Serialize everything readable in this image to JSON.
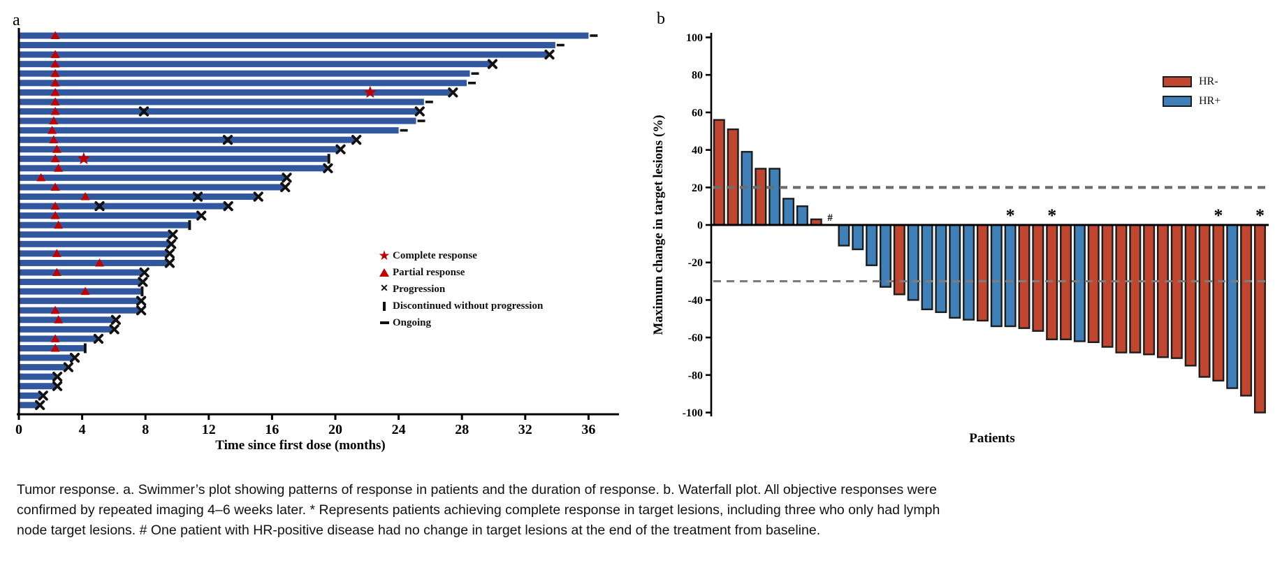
{
  "caption": {
    "lines": [
      "Tumor response. a. Swimmer’s plot showing patterns of response in patients and the duration of response. b. Waterfall plot. All objective responses were",
      "confirmed by repeated imaging 4–6 weeks later. * Represents patients achieving complete response in target lesions, including three who only had lymph",
      "node target lesions. # One patient with HR-positive disease had no change in target lesions at the end of the treatment from baseline."
    ]
  },
  "panel_a": {
    "label": "a",
    "axis_title": "Time since first dose (months)",
    "x_ticks": [
      0,
      4,
      8,
      12,
      16,
      20,
      24,
      28,
      32,
      36
    ],
    "legend": [
      {
        "symbol": "star-icon",
        "label": "Complete response"
      },
      {
        "symbol": "triangle-icon",
        "label": "Partial response"
      },
      {
        "symbol": "x-icon",
        "label": "Progression"
      },
      {
        "symbol": "vbar-icon",
        "label": "Discontinued without progression"
      },
      {
        "symbol": "dash-icon",
        "label": "Ongoing"
      }
    ],
    "colors": {
      "bar": "#31589E",
      "response_marker": "#C00000",
      "event_marker": "#111111"
    }
  },
  "panel_b": {
    "label": "b",
    "y_title": "Maximum change in target lesions (%)",
    "x_title": "Patients",
    "y_ticks": [
      100,
      80,
      60,
      40,
      20,
      0,
      -20,
      -40,
      -60,
      -80,
      -100
    ],
    "reference_lines": [
      20,
      -30
    ],
    "legend": [
      {
        "label": "HR-",
        "color": "#C0462F"
      },
      {
        "label": "HR+",
        "color": "#4080B8"
      }
    ],
    "colors": {
      "hr_neg": "#C0462F",
      "hr_pos": "#4080B8",
      "bar_stroke": "#1d1d1d",
      "dash": "#6e6e6e"
    }
  },
  "chart_data": [
    {
      "type": "bar",
      "subtype": "swimmer",
      "xlabel": "Time since first dose (months)",
      "xlim": [
        0,
        38
      ],
      "x_ticks": [
        0,
        4,
        8,
        12,
        16,
        20,
        24,
        28,
        32,
        36
      ],
      "marker_legend": [
        "Complete response",
        "Partial response",
        "Progression",
        "Discontinued without progression",
        "Ongoing"
      ],
      "patients": [
        {
          "d": 36.0,
          "e": "ongoing",
          "t": [
            2.3
          ],
          "s": [],
          "x": []
        },
        {
          "d": 33.9,
          "e": "ongoing",
          "t": [],
          "s": [],
          "x": []
        },
        {
          "d": 33.4,
          "e": "prog",
          "t": [
            2.3
          ],
          "s": [],
          "x": []
        },
        {
          "d": 29.8,
          "e": "prog",
          "t": [
            2.3
          ],
          "s": [],
          "x": []
        },
        {
          "d": 28.5,
          "e": "ongoing",
          "t": [
            2.3
          ],
          "s": [],
          "x": []
        },
        {
          "d": 28.3,
          "e": "ongoing",
          "t": [
            2.3
          ],
          "s": [],
          "x": []
        },
        {
          "d": 27.3,
          "e": "prog",
          "t": [
            2.3
          ],
          "s": [
            22.2
          ],
          "x": []
        },
        {
          "d": 25.6,
          "e": "ongoing",
          "t": [
            2.3
          ],
          "s": [],
          "x": []
        },
        {
          "d": 25.2,
          "e": "prog",
          "t": [
            2.3
          ],
          "s": [],
          "x": [
            7.9
          ]
        },
        {
          "d": 25.1,
          "e": "ongoing",
          "t": [
            2.2
          ],
          "s": [],
          "x": []
        },
        {
          "d": 24.0,
          "e": "ongoing",
          "t": [
            2.1
          ],
          "s": [],
          "x": []
        },
        {
          "d": 21.2,
          "e": "prog",
          "t": [
            2.2
          ],
          "s": [],
          "x": [
            13.2
          ]
        },
        {
          "d": 20.2,
          "e": "prog",
          "t": [
            2.4
          ],
          "s": [],
          "x": []
        },
        {
          "d": 19.5,
          "e": "disc",
          "t": [
            2.3
          ],
          "s": [
            4.1
          ],
          "x": []
        },
        {
          "d": 19.4,
          "e": "prog",
          "t": [
            2.5
          ],
          "s": [],
          "x": []
        },
        {
          "d": 16.8,
          "e": "prog",
          "t": [
            1.4
          ],
          "s": [],
          "x": []
        },
        {
          "d": 16.7,
          "e": "prog",
          "t": [
            2.3
          ],
          "s": [],
          "x": []
        },
        {
          "d": 15.0,
          "e": "prog",
          "t": [
            4.2
          ],
          "s": [],
          "x": [
            11.3
          ]
        },
        {
          "d": 13.1,
          "e": "prog",
          "t": [
            2.3
          ],
          "s": [],
          "x": [
            5.1
          ]
        },
        {
          "d": 11.4,
          "e": "prog",
          "t": [
            2.3
          ],
          "s": [],
          "x": []
        },
        {
          "d": 10.7,
          "e": "disc",
          "t": [
            2.5
          ],
          "s": [],
          "x": []
        },
        {
          "d": 9.6,
          "e": "prog",
          "t": [],
          "s": [],
          "x": []
        },
        {
          "d": 9.5,
          "e": "prog",
          "t": [],
          "s": [],
          "x": []
        },
        {
          "d": 9.4,
          "e": "prog",
          "t": [
            2.4
          ],
          "s": [],
          "x": []
        },
        {
          "d": 9.4,
          "e": "prog",
          "t": [
            5.1
          ],
          "s": [],
          "x": []
        },
        {
          "d": 7.8,
          "e": "prog",
          "t": [
            2.4
          ],
          "s": [],
          "x": []
        },
        {
          "d": 7.7,
          "e": "prog",
          "t": [],
          "s": [],
          "x": []
        },
        {
          "d": 7.7,
          "e": "disc",
          "t": [
            4.2
          ],
          "s": [],
          "x": []
        },
        {
          "d": 7.6,
          "e": "prog",
          "t": [],
          "s": [],
          "x": []
        },
        {
          "d": 7.6,
          "e": "prog",
          "t": [
            2.3
          ],
          "s": [],
          "x": []
        },
        {
          "d": 6.0,
          "e": "prog",
          "t": [
            2.5
          ],
          "s": [],
          "x": []
        },
        {
          "d": 5.9,
          "e": "prog",
          "t": [],
          "s": [],
          "x": []
        },
        {
          "d": 4.9,
          "e": "prog",
          "t": [
            2.3
          ],
          "s": [],
          "x": []
        },
        {
          "d": 4.1,
          "e": "disc",
          "t": [
            2.3
          ],
          "s": [],
          "x": []
        },
        {
          "d": 3.4,
          "e": "prog",
          "t": [],
          "s": [],
          "x": []
        },
        {
          "d": 3.0,
          "e": "prog",
          "t": [],
          "s": [],
          "x": []
        },
        {
          "d": 2.3,
          "e": "prog",
          "t": [],
          "s": [],
          "x": []
        },
        {
          "d": 2.3,
          "e": "prog",
          "t": [],
          "s": [],
          "x": []
        },
        {
          "d": 1.4,
          "e": "prog",
          "t": [],
          "s": [],
          "x": []
        },
        {
          "d": 1.2,
          "e": "prog",
          "t": [],
          "s": [],
          "x": []
        }
      ]
    },
    {
      "type": "bar",
      "subtype": "waterfall",
      "xlabel": "Patients",
      "ylabel": "Maximum change in target lesions (%)",
      "ylim": [
        -100,
        100
      ],
      "y_ticks": [
        100,
        80,
        60,
        40,
        20,
        0,
        -20,
        -40,
        -60,
        -80,
        -100
      ],
      "reference_lines": [
        20,
        -30
      ],
      "legend": [
        "HR-",
        "HR+"
      ],
      "bars": [
        {
          "v": 56,
          "hr": "HR-",
          "mark": null
        },
        {
          "v": 51,
          "hr": "HR-",
          "mark": null
        },
        {
          "v": 39,
          "hr": "HR+",
          "mark": null
        },
        {
          "v": 30,
          "hr": "HR-",
          "mark": null
        },
        {
          "v": 30,
          "hr": "HR+",
          "mark": null
        },
        {
          "v": 14,
          "hr": "HR+",
          "mark": null
        },
        {
          "v": 10,
          "hr": "HR+",
          "mark": null
        },
        {
          "v": 3,
          "hr": "HR-",
          "mark": null
        },
        {
          "v": 0,
          "hr": "HR+",
          "mark": "#"
        },
        {
          "v": -11,
          "hr": "HR+",
          "mark": null
        },
        {
          "v": -13,
          "hr": "HR+",
          "mark": null
        },
        {
          "v": -21.5,
          "hr": "HR+",
          "mark": null
        },
        {
          "v": -33,
          "hr": "HR+",
          "mark": null
        },
        {
          "v": -37,
          "hr": "HR-",
          "mark": null
        },
        {
          "v": -40,
          "hr": "HR+",
          "mark": null
        },
        {
          "v": -45,
          "hr": "HR+",
          "mark": null
        },
        {
          "v": -46.5,
          "hr": "HR+",
          "mark": null
        },
        {
          "v": -49.5,
          "hr": "HR+",
          "mark": null
        },
        {
          "v": -50.5,
          "hr": "HR+",
          "mark": null
        },
        {
          "v": -51,
          "hr": "HR-",
          "mark": null
        },
        {
          "v": -54,
          "hr": "HR+",
          "mark": null
        },
        {
          "v": -54,
          "hr": "HR+",
          "mark": "*"
        },
        {
          "v": -55,
          "hr": "HR-",
          "mark": null
        },
        {
          "v": -56.5,
          "hr": "HR-",
          "mark": null
        },
        {
          "v": -61,
          "hr": "HR-",
          "mark": "*"
        },
        {
          "v": -61,
          "hr": "HR-",
          "mark": null
        },
        {
          "v": -62,
          "hr": "HR+",
          "mark": null
        },
        {
          "v": -62.5,
          "hr": "HR-",
          "mark": null
        },
        {
          "v": -65,
          "hr": "HR-",
          "mark": null
        },
        {
          "v": -68,
          "hr": "HR-",
          "mark": null
        },
        {
          "v": -68,
          "hr": "HR-",
          "mark": null
        },
        {
          "v": -69,
          "hr": "HR-",
          "mark": null
        },
        {
          "v": -70.5,
          "hr": "HR-",
          "mark": null
        },
        {
          "v": -71,
          "hr": "HR-",
          "mark": null
        },
        {
          "v": -75,
          "hr": "HR-",
          "mark": null
        },
        {
          "v": -81,
          "hr": "HR-",
          "mark": null
        },
        {
          "v": -83,
          "hr": "HR-",
          "mark": "*"
        },
        {
          "v": -87,
          "hr": "HR+",
          "mark": null
        },
        {
          "v": -91,
          "hr": "HR-",
          "mark": null
        },
        {
          "v": -100,
          "hr": "HR-",
          "mark": "*"
        }
      ]
    }
  ]
}
